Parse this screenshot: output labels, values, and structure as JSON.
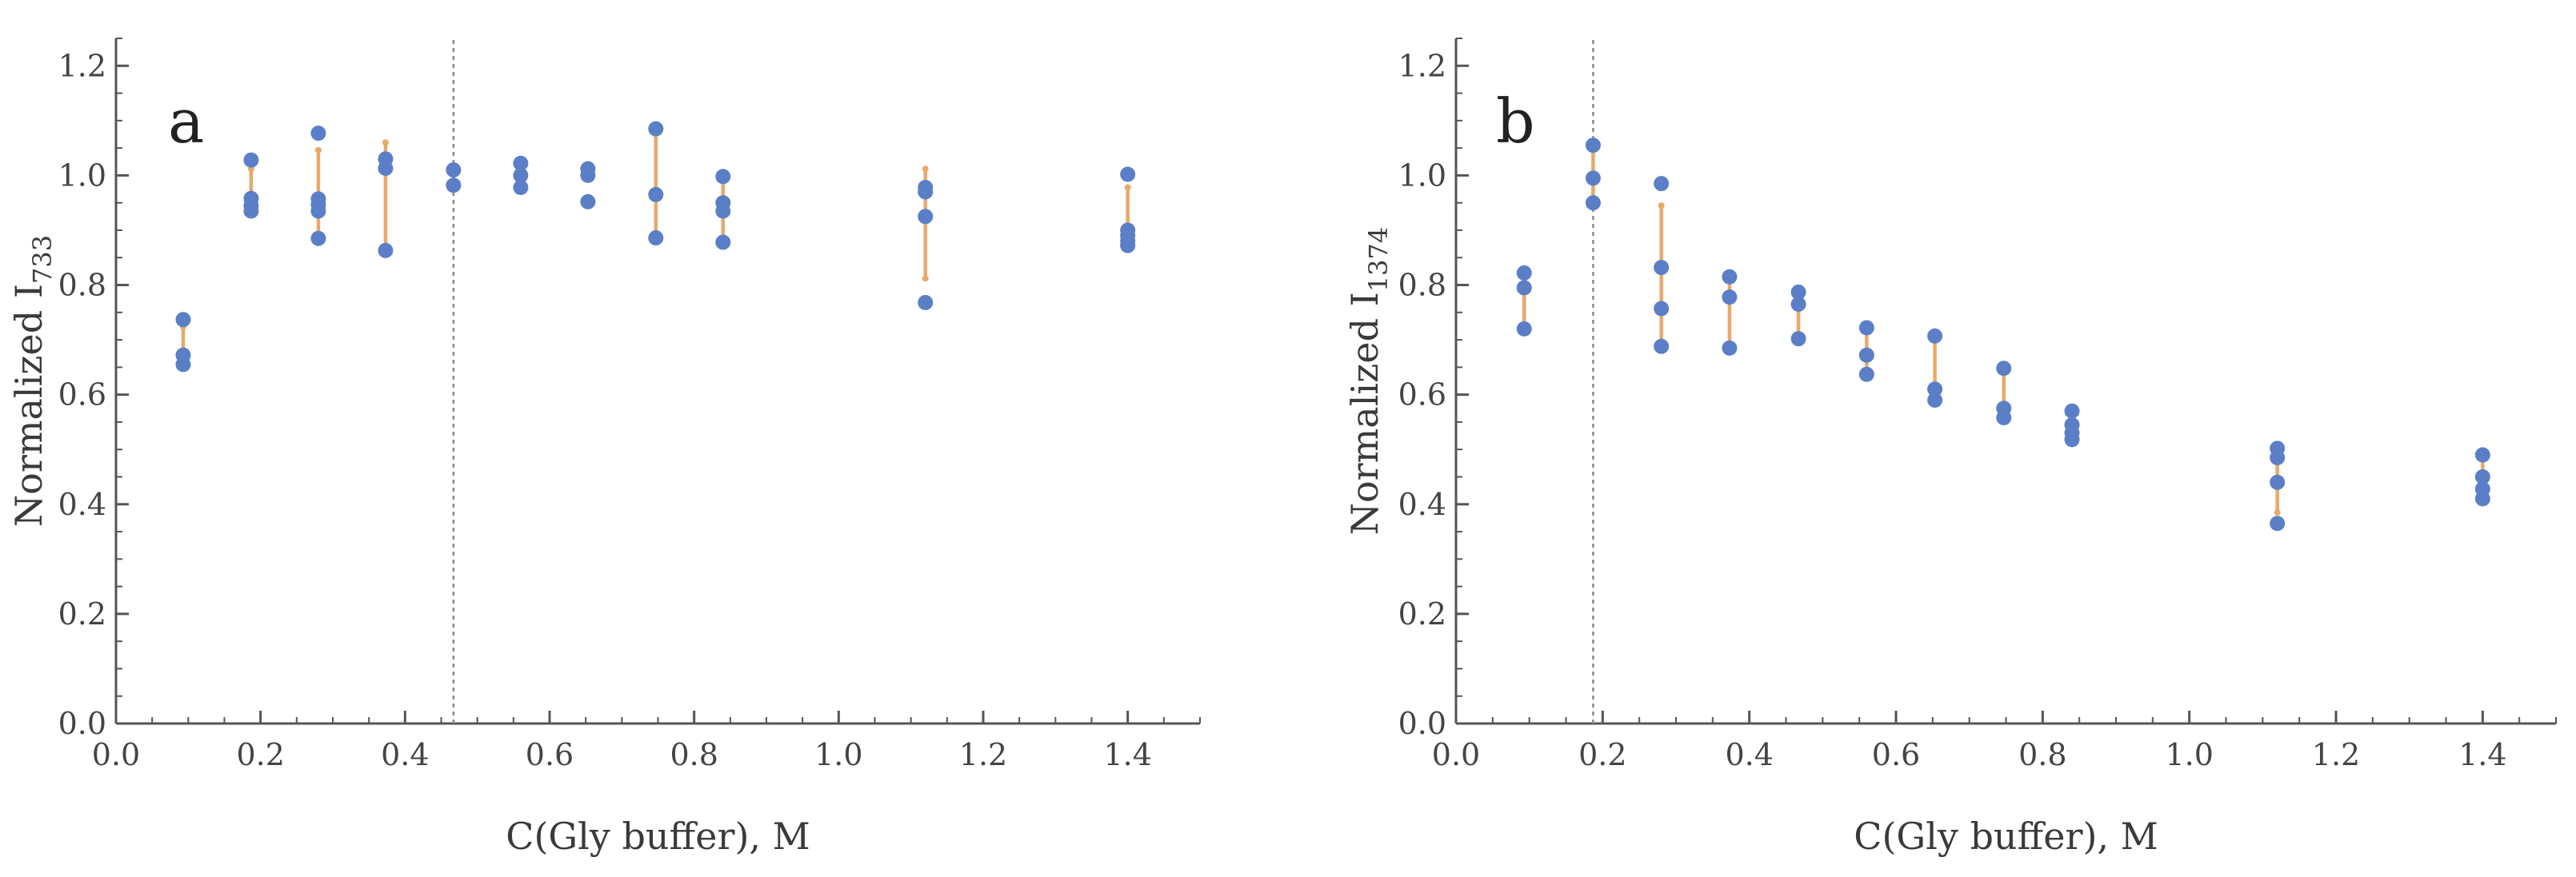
{
  "chart_data": [
    {
      "type": "scatter",
      "panel_label": "a",
      "xlabel": "C(Gly buffer), M",
      "ylabel_main": "Normalized I",
      "ylabel_sub": "733",
      "xlim": [
        0.0,
        1.5
      ],
      "ylim": [
        0.0,
        1.25
      ],
      "x_ticks": [
        "0.0",
        "0.2",
        "0.4",
        "0.6",
        "0.8",
        "1.0",
        "1.2",
        "1.4"
      ],
      "y_ticks": [
        "0.0",
        "0.2",
        "0.4",
        "0.6",
        "0.8",
        "1.0",
        "1.2"
      ],
      "reference_line_x": 0.467,
      "grid": false,
      "points": [
        {
          "x": 0.093,
          "y": [
            0.737,
            0.672,
            0.655
          ]
        },
        {
          "x": 0.187,
          "y": [
            1.028,
            0.958,
            0.945,
            0.935
          ]
        },
        {
          "x": 0.28,
          "y": [
            1.077,
            0.957,
            0.947,
            0.935,
            0.885
          ]
        },
        {
          "x": 0.373,
          "y": [
            1.03,
            1.013,
            0.863
          ]
        },
        {
          "x": 0.467,
          "y": [
            1.01,
            0.982
          ]
        },
        {
          "x": 0.56,
          "y": [
            1.022,
            1.0,
            0.978
          ]
        },
        {
          "x": 0.653,
          "y": [
            1.012,
            1.0,
            0.952
          ]
        },
        {
          "x": 0.747,
          "y": [
            1.085,
            0.965,
            0.886
          ]
        },
        {
          "x": 0.84,
          "y": [
            0.998,
            0.95,
            0.935,
            0.878
          ]
        },
        {
          "x": 1.12,
          "y": [
            0.978,
            0.97,
            0.925,
            0.768
          ]
        },
        {
          "x": 1.4,
          "y": [
            1.002,
            0.9,
            0.89,
            0.88,
            0.872
          ]
        }
      ],
      "error_bars": [
        {
          "x": 0.093,
          "low": 0.663,
          "high": 0.724
        },
        {
          "x": 0.187,
          "low": 0.938,
          "high": 1.012
        },
        {
          "x": 0.28,
          "low": 0.885,
          "high": 1.046
        },
        {
          "x": 0.373,
          "low": 0.866,
          "high": 1.06
        },
        {
          "x": 0.747,
          "low": 0.886,
          "high": 1.08
        },
        {
          "x": 0.84,
          "low": 0.88,
          "high": 0.997
        },
        {
          "x": 1.12,
          "low": 0.812,
          "high": 1.012
        },
        {
          "x": 1.4,
          "low": 0.868,
          "high": 0.978
        }
      ]
    },
    {
      "type": "scatter",
      "panel_label": "b",
      "xlabel": "C(Gly buffer), M",
      "ylabel_main": "Normalized I",
      "ylabel_sub": "1374",
      "xlim": [
        0.0,
        1.5
      ],
      "ylim": [
        0.0,
        1.25
      ],
      "x_ticks": [
        "0.0",
        "0.2",
        "0.4",
        "0.6",
        "0.8",
        "1.0",
        "1.2",
        "1.4"
      ],
      "y_ticks": [
        "0.0",
        "0.2",
        "0.4",
        "0.6",
        "0.8",
        "1.0",
        "1.2"
      ],
      "reference_line_x": 0.187,
      "grid": false,
      "points": [
        {
          "x": 0.093,
          "y": [
            0.822,
            0.795,
            0.72
          ]
        },
        {
          "x": 0.187,
          "y": [
            1.055,
            0.995,
            0.95
          ]
        },
        {
          "x": 0.28,
          "y": [
            0.985,
            0.832,
            0.757,
            0.688
          ]
        },
        {
          "x": 0.373,
          "y": [
            0.815,
            0.778,
            0.685
          ]
        },
        {
          "x": 0.467,
          "y": [
            0.787,
            0.765,
            0.702
          ]
        },
        {
          "x": 0.56,
          "y": [
            0.722,
            0.672,
            0.637
          ]
        },
        {
          "x": 0.653,
          "y": [
            0.707,
            0.61,
            0.59
          ]
        },
        {
          "x": 0.747,
          "y": [
            0.648,
            0.575,
            0.558
          ]
        },
        {
          "x": 0.84,
          "y": [
            0.57,
            0.545,
            0.53,
            0.518
          ]
        },
        {
          "x": 1.12,
          "y": [
            0.502,
            0.485,
            0.44,
            0.365
          ]
        },
        {
          "x": 1.4,
          "y": [
            0.49,
            0.45,
            0.428,
            0.41
          ]
        }
      ],
      "error_bars": [
        {
          "x": 0.093,
          "low": 0.726,
          "high": 0.829
        },
        {
          "x": 0.187,
          "low": 0.95,
          "high": 1.05
        },
        {
          "x": 0.28,
          "low": 0.69,
          "high": 0.945
        },
        {
          "x": 0.373,
          "low": 0.688,
          "high": 0.812
        },
        {
          "x": 0.467,
          "low": 0.702,
          "high": 0.783
        },
        {
          "x": 0.56,
          "low": 0.637,
          "high": 0.722
        },
        {
          "x": 0.653,
          "low": 0.59,
          "high": 0.702
        },
        {
          "x": 0.747,
          "low": 0.558,
          "high": 0.642
        },
        {
          "x": 0.84,
          "low": 0.518,
          "high": 0.565
        },
        {
          "x": 1.12,
          "low": 0.385,
          "high": 0.502
        },
        {
          "x": 1.4,
          "low": 0.41,
          "high": 0.488
        }
      ]
    }
  ]
}
